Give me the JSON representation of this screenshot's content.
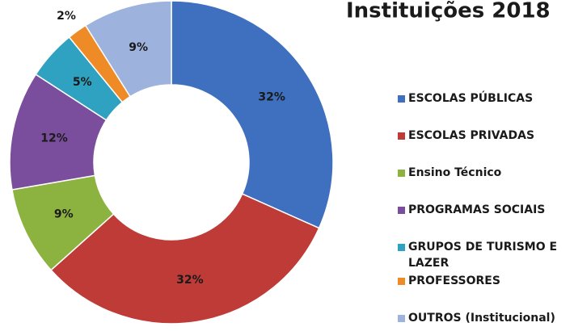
{
  "chart_data": {
    "type": "donut",
    "title": "Instituições 2018",
    "categories": [
      "ESCOLAS PÚBLICAS",
      "ESCOLAS PRIVADAS",
      "Ensino Técnico",
      "PROGRAMAS SOCIAIS",
      "GRUPOS DE TURISMO E LAZER",
      "PROFESSORES",
      "OUTROS (Institucional)"
    ],
    "values": [
      32,
      32,
      9,
      12,
      5,
      2,
      9
    ],
    "value_labels": [
      "32%",
      "32%",
      "9%",
      "12%",
      "5%",
      "2%",
      "9%"
    ],
    "colors": [
      "#3f6fbf",
      "#be3b37",
      "#8cb23f",
      "#7a4e9c",
      "#2fa2c2",
      "#ef8b26",
      "#9db2dc"
    ],
    "legend": "right"
  }
}
